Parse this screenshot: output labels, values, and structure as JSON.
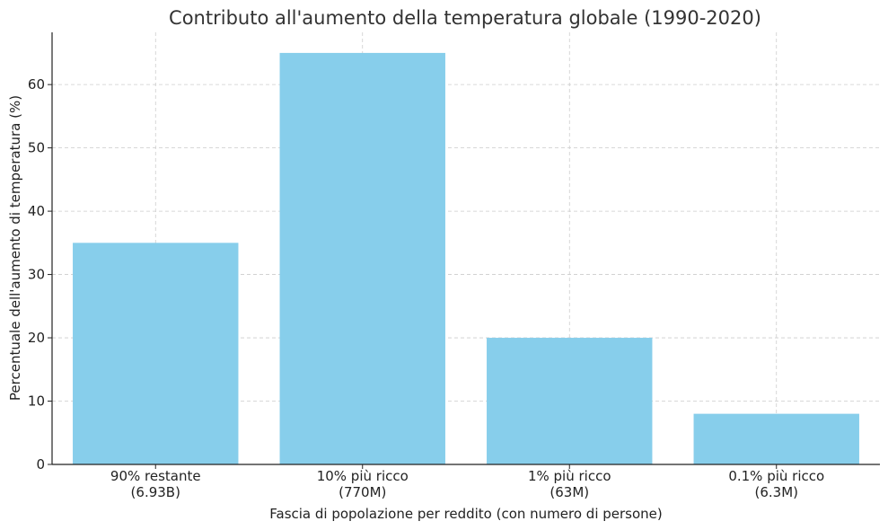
{
  "chart_data": {
    "type": "bar",
    "title": "Contributo all'aumento della temperatura globale (1990-2020)",
    "xlabel": "Fascia di popolazione per reddito (con numero di persone)",
    "ylabel": "Percentuale dell'aumento di temperatura (%)",
    "categories": [
      [
        "90% restante",
        "(6.93B)"
      ],
      [
        "10% più ricco",
        "(770M)"
      ],
      [
        "1% più ricco",
        "(63M)"
      ],
      [
        "0.1% più ricco",
        "(6.3M)"
      ]
    ],
    "values": [
      35,
      65,
      20,
      8
    ],
    "ylim": [
      0,
      68.25
    ],
    "yticks": [
      0,
      10,
      20,
      30,
      40,
      50,
      60
    ],
    "grid": true,
    "bar_color": "#87CEEB"
  }
}
